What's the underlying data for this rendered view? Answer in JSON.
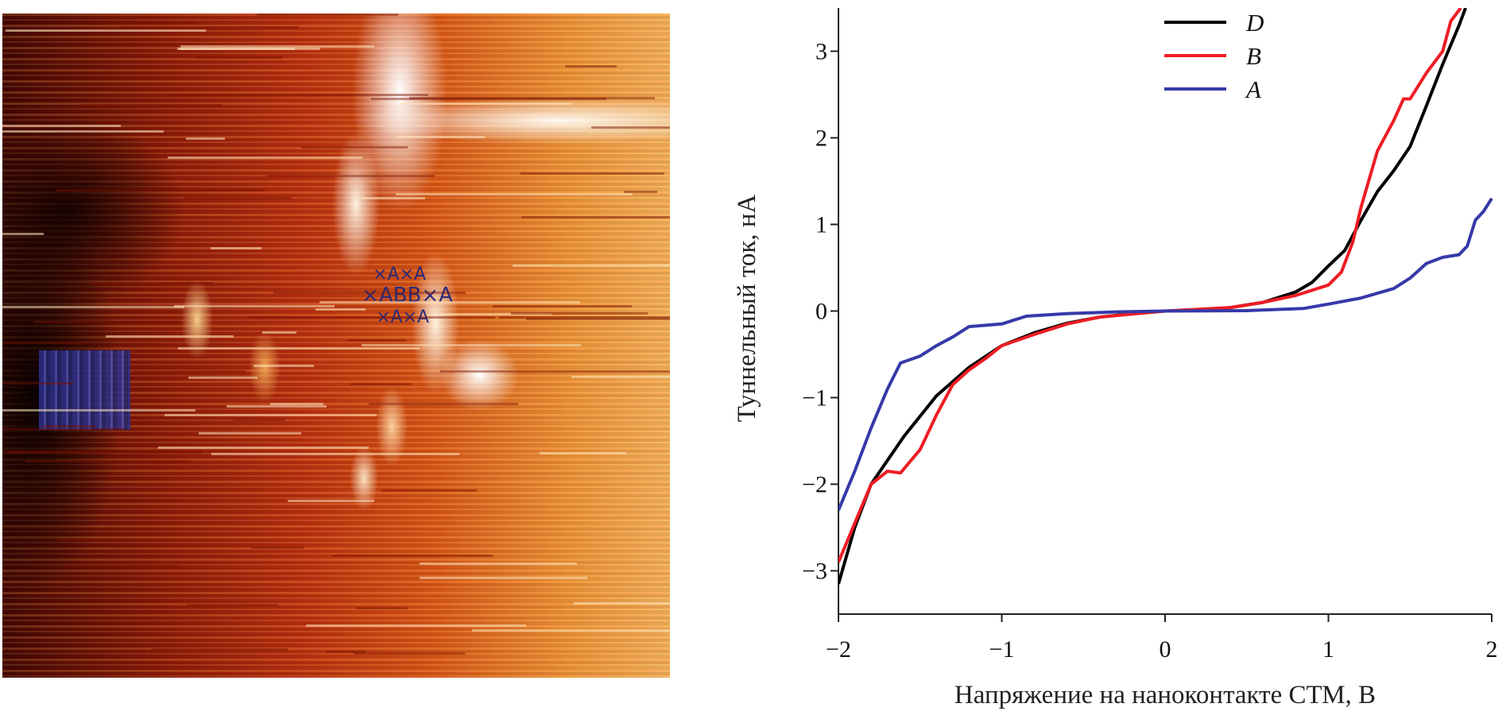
{
  "image_panel": {
    "markers": {
      "row1": "×A×A",
      "row2": "×ABB×A",
      "row3": "×A×A"
    }
  },
  "chart_data": {
    "type": "line",
    "xlabel": "Напряжение на наноконтакте СТМ, В",
    "ylabel": "Туннельный ток, нА",
    "xlim": [
      -2,
      2
    ],
    "ylim": [
      -3.5,
      3.5
    ],
    "xticks": [
      -2,
      -1,
      0,
      1,
      2
    ],
    "yticks": [
      -3,
      -2,
      -1,
      0,
      1,
      2,
      3
    ],
    "xtick_labels": [
      "−2",
      "−1",
      "0",
      "1",
      "2"
    ],
    "ytick_labels": [
      "−3",
      "−2",
      "−1",
      "0",
      "1",
      "2",
      "3"
    ],
    "grid": false,
    "legend_position": "top-center",
    "series": [
      {
        "name": "D",
        "color": "#000000",
        "x": [
          -2,
          -1.9,
          -1.8,
          -1.6,
          -1.4,
          -1.2,
          -1.0,
          -0.8,
          -0.6,
          -0.4,
          -0.2,
          0,
          0.2,
          0.4,
          0.6,
          0.8,
          0.9,
          1.0,
          1.1,
          1.2,
          1.3,
          1.4,
          1.5,
          1.6,
          1.7,
          1.8,
          1.84
        ],
        "y": [
          -3.15,
          -2.5,
          -2.0,
          -1.45,
          -0.98,
          -0.65,
          -0.4,
          -0.25,
          -0.14,
          -0.07,
          -0.03,
          0,
          0.01,
          0.04,
          0.1,
          0.22,
          0.33,
          0.52,
          0.7,
          1.05,
          1.38,
          1.62,
          1.9,
          2.37,
          2.85,
          3.3,
          3.5
        ]
      },
      {
        "name": "B",
        "color": "#ee1c24",
        "x": [
          -2,
          -1.9,
          -1.8,
          -1.7,
          -1.62,
          -1.5,
          -1.4,
          -1.3,
          -1.2,
          -1.1,
          -1.0,
          -0.8,
          -0.6,
          -0.4,
          0,
          0.4,
          0.6,
          0.8,
          1.0,
          1.08,
          1.15,
          1.2,
          1.3,
          1.4,
          1.46,
          1.5,
          1.6,
          1.7,
          1.75,
          1.81
        ],
        "y": [
          -2.9,
          -2.45,
          -2.0,
          -1.85,
          -1.87,
          -1.6,
          -1.2,
          -0.85,
          -0.68,
          -0.55,
          -0.4,
          -0.27,
          -0.15,
          -0.07,
          0,
          0.04,
          0.1,
          0.18,
          0.3,
          0.45,
          0.8,
          1.2,
          1.85,
          2.2,
          2.45,
          2.45,
          2.75,
          3.0,
          3.35,
          3.5
        ]
      },
      {
        "name": "A",
        "color": "#3539a8",
        "x": [
          -2,
          -1.9,
          -1.8,
          -1.7,
          -1.62,
          -1.5,
          -1.4,
          -1.3,
          -1.2,
          -1.0,
          -0.85,
          -0.6,
          -0.3,
          0,
          0.5,
          0.85,
          1.0,
          1.2,
          1.4,
          1.5,
          1.6,
          1.7,
          1.8,
          1.85,
          1.9,
          1.95,
          2.0
        ],
        "y": [
          -2.3,
          -1.85,
          -1.35,
          -0.9,
          -0.6,
          -0.52,
          -0.4,
          -0.3,
          -0.18,
          -0.15,
          -0.06,
          -0.03,
          -0.01,
          0,
          0.005,
          0.03,
          0.08,
          0.15,
          0.26,
          0.38,
          0.55,
          0.62,
          0.65,
          0.75,
          1.05,
          1.15,
          1.3
        ]
      }
    ]
  }
}
